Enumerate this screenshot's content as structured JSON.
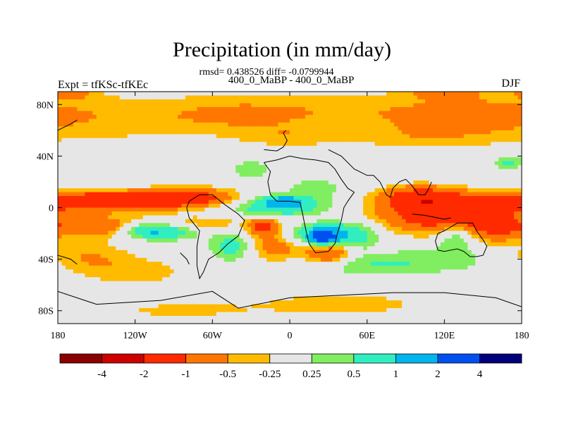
{
  "chart_data": {
    "type": "heatmap",
    "title": "Precipitation (in mm/day)",
    "stats_text": "rmsd= 0.438526 diff= -0.0799944",
    "subtitle": "400_0_MaBP - 400_0_MaBP",
    "left_label": "Expt = tfKSc-tfKEc",
    "right_label": "DJF",
    "x_axis": {
      "range": [
        -180,
        180
      ],
      "ticks": [
        {
          "value": -180,
          "label": "180"
        },
        {
          "value": -120,
          "label": "120W"
        },
        {
          "value": -60,
          "label": "60W"
        },
        {
          "value": 0,
          "label": "0"
        },
        {
          "value": 60,
          "label": "60E"
        },
        {
          "value": 120,
          "label": "120E"
        },
        {
          "value": 180,
          "label": "180"
        }
      ]
    },
    "y_axis": {
      "range": [
        -90,
        90
      ],
      "ticks": [
        {
          "value": 80,
          "label": "80N"
        },
        {
          "value": 40,
          "label": "40N"
        },
        {
          "value": 0,
          "label": "0"
        },
        {
          "value": -40,
          "label": "40S"
        },
        {
          "value": -80,
          "label": "80S"
        }
      ]
    },
    "colorbar": {
      "levels": [
        -4,
        -2,
        -1,
        -0.5,
        -0.25,
        0.25,
        0.5,
        1,
        2,
        4
      ],
      "labels": [
        "-4",
        "-2",
        "-1",
        "-0.5",
        "-0.25",
        "0.25",
        "0.5",
        "1",
        "2",
        "4"
      ],
      "colors": [
        "#8b0000",
        "#cc0000",
        "#ff2a00",
        "#ff7700",
        "#ffbb00",
        "#e6e6e6",
        "#80ee60",
        "#30eec0",
        "#00b4ee",
        "#0050f0",
        "#00007d"
      ]
    },
    "features": [
      {
        "lon": -140,
        "lat": 70,
        "sx": 60,
        "sy": 14,
        "v": -0.4
      },
      {
        "lon": -40,
        "lat": 72,
        "sx": 40,
        "sy": 10,
        "v": -0.4
      },
      {
        "lon": 50,
        "lat": 75,
        "sx": 60,
        "sy": 10,
        "v": -0.4
      },
      {
        "lon": 140,
        "lat": 72,
        "sx": 40,
        "sy": 12,
        "v": -0.4
      },
      {
        "lon": 0,
        "lat": 55,
        "sx": 30,
        "sy": 6,
        "v": -0.35
      },
      {
        "lon": 100,
        "lat": 55,
        "sx": 40,
        "sy": 8,
        "v": -0.35
      },
      {
        "lon": -170,
        "lat": 90,
        "sx": 12,
        "sy": 4,
        "v": -0.6
      },
      {
        "lon": 120,
        "lat": 90,
        "sx": 20,
        "sy": 4,
        "v": -0.6
      },
      {
        "lon": -150,
        "lat": 5,
        "sx": 45,
        "sy": 5,
        "v": -1.8
      },
      {
        "lon": -80,
        "lat": 8,
        "sx": 25,
        "sy": 5,
        "v": -1.3
      },
      {
        "lon": -150,
        "lat": -15,
        "sx": 45,
        "sy": 6,
        "v": -0.9
      },
      {
        "lon": -160,
        "lat": -38,
        "sx": 25,
        "sy": 8,
        "v": -0.5
      },
      {
        "lon": -120,
        "lat": -50,
        "sx": 30,
        "sy": 8,
        "v": -0.4
      },
      {
        "lon": -100,
        "lat": -18,
        "sx": 20,
        "sy": 5,
        "v": 1.2
      },
      {
        "lon": -115,
        "lat": -17,
        "sx": 12,
        "sy": 4,
        "v": 0.6
      },
      {
        "lon": -10,
        "lat": 0,
        "sx": 28,
        "sy": 5,
        "v": 0.8
      },
      {
        "lon": -5,
        "lat": 5,
        "sx": 12,
        "sy": 3,
        "v": 1.1
      },
      {
        "lon": -20,
        "lat": -15,
        "sx": 8,
        "sy": 5,
        "v": -1.2
      },
      {
        "lon": -10,
        "lat": -30,
        "sx": 15,
        "sy": 8,
        "v": -0.8
      },
      {
        "lon": -45,
        "lat": -30,
        "sx": 12,
        "sy": 8,
        "v": 0.7
      },
      {
        "lon": -65,
        "lat": -12,
        "sx": 25,
        "sy": 4,
        "v": -0.4
      },
      {
        "lon": 25,
        "lat": -22,
        "sx": 20,
        "sy": 6,
        "v": 1.1
      },
      {
        "lon": 26,
        "lat": -22,
        "sx": 6,
        "sy": 4,
        "v": 2.5
      },
      {
        "lon": 30,
        "lat": -35,
        "sx": 12,
        "sy": 6,
        "v": -1.2
      },
      {
        "lon": 50,
        "lat": -20,
        "sx": 15,
        "sy": 8,
        "v": 0.5
      },
      {
        "lon": 120,
        "lat": -5,
        "sx": 35,
        "sy": 10,
        "v": -1.6
      },
      {
        "lon": 100,
        "lat": 8,
        "sx": 20,
        "sy": 6,
        "v": -1.2
      },
      {
        "lon": 128,
        "lat": -20,
        "sx": 10,
        "sy": 8,
        "v": 0.7
      },
      {
        "lon": 160,
        "lat": -15,
        "sx": 10,
        "sy": 10,
        "v": -0.6
      },
      {
        "lon": 60,
        "lat": -45,
        "sx": 35,
        "sy": 6,
        "v": 0.4
      },
      {
        "lon": 120,
        "lat": -40,
        "sx": 40,
        "sy": 8,
        "v": 0.35
      },
      {
        "lon": 20,
        "lat": 15,
        "sx": 20,
        "sy": 8,
        "v": 0.35
      },
      {
        "lon": 170,
        "lat": 35,
        "sx": 8,
        "sy": 4,
        "v": 0.6
      },
      {
        "lon": -30,
        "lat": 30,
        "sx": 10,
        "sy": 5,
        "v": 0.5
      },
      {
        "lon": 40,
        "lat": -75,
        "sx": 60,
        "sy": 8,
        "v": -0.35
      },
      {
        "lon": -90,
        "lat": -80,
        "sx": 40,
        "sy": 5,
        "v": -0.3
      }
    ],
    "coastlines": [
      [
        [
          -20,
          35
        ],
        [
          -10,
          37
        ],
        [
          0,
          40
        ],
        [
          10,
          38
        ],
        [
          20,
          37
        ],
        [
          30,
          35
        ],
        [
          35,
          30
        ],
        [
          40,
          22
        ],
        [
          45,
          15
        ],
        [
          50,
          12
        ],
        [
          45,
          5
        ],
        [
          42,
          0
        ],
        [
          40,
          -10
        ],
        [
          37,
          -20
        ],
        [
          35,
          -28
        ],
        [
          30,
          -34
        ],
        [
          20,
          -35
        ],
        [
          15,
          -28
        ],
        [
          12,
          -15
        ],
        [
          10,
          -5
        ],
        [
          8,
          4
        ],
        [
          0,
          5
        ],
        [
          -10,
          5
        ],
        [
          -15,
          10
        ],
        [
          -17,
          20
        ],
        [
          -15,
          28
        ],
        [
          -20,
          35
        ]
      ],
      [
        [
          -70,
          10
        ],
        [
          -60,
          10
        ],
        [
          -50,
          2
        ],
        [
          -40,
          -5
        ],
        [
          -35,
          -10
        ],
        [
          -40,
          -22
        ],
        [
          -48,
          -28
        ],
        [
          -55,
          -35
        ],
        [
          -63,
          -40
        ],
        [
          -67,
          -50
        ],
        [
          -70,
          -55
        ],
        [
          -72,
          -45
        ],
        [
          -72,
          -30
        ],
        [
          -70,
          -18
        ],
        [
          -78,
          -8
        ],
        [
          -80,
          0
        ],
        [
          -78,
          5
        ],
        [
          -70,
          10
        ]
      ],
      [
        [
          115,
          -20
        ],
        [
          120,
          -18
        ],
        [
          130,
          -12
        ],
        [
          137,
          -12
        ],
        [
          142,
          -12
        ],
        [
          145,
          -18
        ],
        [
          150,
          -25
        ],
        [
          153,
          -30
        ],
        [
          150,
          -37
        ],
        [
          145,
          -38
        ],
        [
          140,
          -38
        ],
        [
          135,
          -34
        ],
        [
          130,
          -32
        ],
        [
          120,
          -34
        ],
        [
          115,
          -33
        ],
        [
          113,
          -26
        ],
        [
          115,
          -20
        ]
      ],
      [
        [
          -180,
          -65
        ],
        [
          -150,
          -75
        ],
        [
          -100,
          -72
        ],
        [
          -60,
          -65
        ],
        [
          -40,
          -78
        ],
        [
          0,
          -70
        ],
        [
          40,
          -68
        ],
        [
          80,
          -66
        ],
        [
          120,
          -66
        ],
        [
          160,
          -70
        ],
        [
          180,
          -77
        ]
      ],
      [
        [
          30,
          45
        ],
        [
          40,
          40
        ],
        [
          50,
          30
        ],
        [
          60,
          25
        ],
        [
          65,
          25
        ],
        [
          70,
          20
        ],
        [
          75,
          10
        ],
        [
          78,
          8
        ],
        [
          80,
          15
        ],
        [
          85,
          20
        ],
        [
          90,
          22
        ],
        [
          95,
          17
        ],
        [
          100,
          10
        ],
        [
          105,
          10
        ],
        [
          108,
          15
        ],
        [
          110,
          20
        ]
      ],
      [
        [
          -180,
          -37
        ],
        [
          -170,
          -40
        ],
        [
          -165,
          -44
        ]
      ],
      [
        [
          -180,
          60
        ],
        [
          -170,
          65
        ],
        [
          -165,
          68
        ]
      ],
      [
        [
          -20,
          45
        ],
        [
          -10,
          44
        ],
        [
          -5,
          47
        ],
        [
          -2,
          52
        ],
        [
          -5,
          58
        ],
        [
          -3,
          60
        ]
      ],
      [
        [
          95,
          -5
        ],
        [
          105,
          -6
        ],
        [
          115,
          -8
        ],
        [
          120,
          -9
        ],
        [
          125,
          -8
        ]
      ],
      [
        [
          -85,
          -35
        ],
        [
          -80,
          -40
        ],
        [
          -78,
          -44
        ]
      ]
    ]
  }
}
